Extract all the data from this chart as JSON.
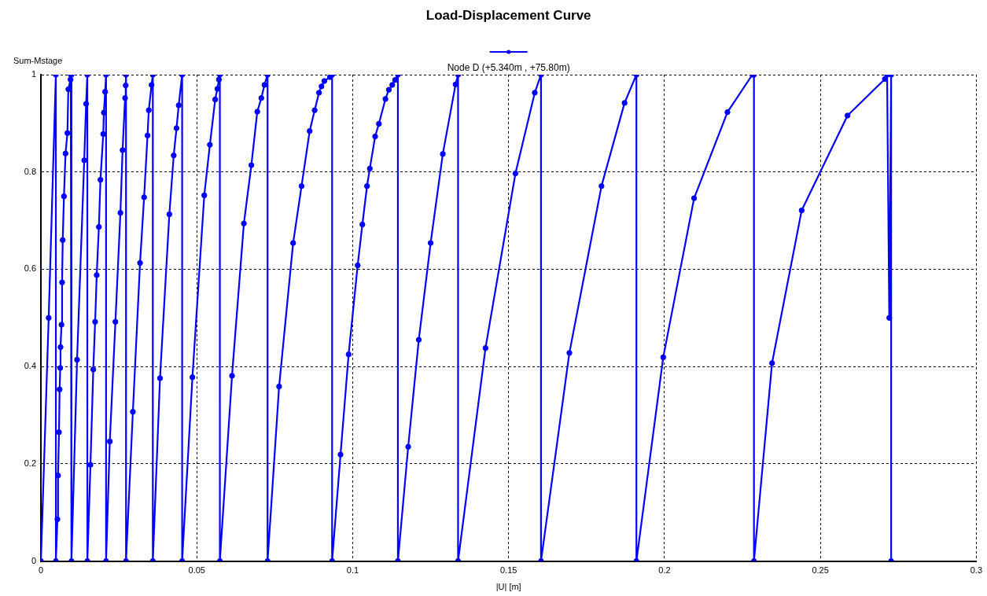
{
  "chart_data": {
    "type": "line",
    "title": "Load-Displacement Curve",
    "xlabel": "|U| [m]",
    "ylabel": "Sum-Mstage",
    "series": [
      {
        "name": "Node D (+5.340m , +75.80m)",
        "color": "#0000ff",
        "x": [
          0,
          0.0025,
          0.0048,
          0.0048,
          0.0053,
          0.0055,
          0.0058,
          0.006,
          0.0062,
          0.0063,
          0.0066,
          0.0068,
          0.007,
          0.0074,
          0.0079,
          0.0085,
          0.0088,
          0.0095,
          0.0096,
          0.0098,
          0.0098,
          0.0116,
          0.0139,
          0.0145,
          0.0149,
          0.0149,
          0.0159,
          0.0168,
          0.0174,
          0.0179,
          0.0186,
          0.0191,
          0.02,
          0.0202,
          0.0206,
          0.0209,
          0.0209,
          0.0221,
          0.0239,
          0.0255,
          0.0262,
          0.027,
          0.0272,
          0.0273,
          0.0273,
          0.0295,
          0.0318,
          0.0331,
          0.0342,
          0.0346,
          0.0355,
          0.0359,
          0.0359,
          0.0382,
          0.0412,
          0.0426,
          0.0435,
          0.0442,
          0.0453,
          0.0453,
          0.0486,
          0.0524,
          0.0542,
          0.0559,
          0.0566,
          0.0571,
          0.0574,
          0.0574,
          0.0613,
          0.0651,
          0.0675,
          0.0694,
          0.0707,
          0.0717,
          0.0727,
          0.0727,
          0.0764,
          0.0809,
          0.0836,
          0.0862,
          0.0878,
          0.0892,
          0.09,
          0.0909,
          0.0927,
          0.0934,
          0.0934,
          0.0961,
          0.0987,
          0.1016,
          0.1031,
          0.1046,
          0.1055,
          0.1072,
          0.1084,
          0.1105,
          0.1116,
          0.1127,
          0.1136,
          0.1145,
          0.1145,
          0.1178,
          0.1212,
          0.125,
          0.1289,
          0.133,
          0.1338,
          0.1338,
          0.1426,
          0.1522,
          0.1584,
          0.1604,
          0.1604,
          0.1695,
          0.1798,
          0.1872,
          0.191,
          0.191,
          0.1996,
          0.2095,
          0.2202,
          0.2282,
          0.2287,
          0.2287,
          0.2345,
          0.244,
          0.2587,
          0.2707,
          0.2714,
          0.2721,
          0.2727,
          0.2727
        ],
        "values": [
          0,
          0.5,
          1,
          0,
          0.086,
          0.176,
          0.265,
          0.353,
          0.397,
          0.44,
          0.486,
          0.573,
          0.66,
          0.75,
          0.838,
          0.88,
          0.97,
          0.99,
          1,
          1,
          0,
          0.414,
          0.824,
          0.94,
          1,
          0,
          0.198,
          0.394,
          0.492,
          0.588,
          0.687,
          0.784,
          0.878,
          0.922,
          0.965,
          1,
          0,
          0.246,
          0.492,
          0.716,
          0.845,
          0.952,
          0.978,
          1,
          0,
          0.307,
          0.613,
          0.748,
          0.875,
          0.927,
          0.979,
          1,
          0,
          0.376,
          0.713,
          0.834,
          0.89,
          0.937,
          1,
          0,
          0.378,
          0.752,
          0.856,
          0.949,
          0.971,
          0.99,
          1,
          0,
          0.381,
          0.694,
          0.814,
          0.924,
          0.952,
          0.979,
          1,
          0,
          0.359,
          0.654,
          0.771,
          0.884,
          0.927,
          0.963,
          0.976,
          0.987,
          0.995,
          1,
          0,
          0.219,
          0.425,
          0.608,
          0.692,
          0.771,
          0.807,
          0.873,
          0.899,
          0.95,
          0.969,
          0.979,
          0.989,
          1,
          0,
          0.235,
          0.455,
          0.654,
          0.837,
          0.98,
          1,
          0,
          0.438,
          0.797,
          0.963,
          1,
          0,
          0.428,
          0.771,
          0.942,
          1,
          0,
          0.419,
          0.746,
          0.923,
          1,
          1,
          0,
          0.407,
          0.721,
          0.916,
          0.991,
          1,
          0.5,
          1,
          0
        ]
      }
    ],
    "xlim": [
      0,
      0.3
    ],
    "xticks": [
      0,
      0.05,
      0.1,
      0.15,
      0.2,
      0.25,
      0.3
    ],
    "ylim": [
      0,
      1
    ],
    "yticks": [
      0,
      0.2,
      0.4,
      0.6,
      0.8,
      1
    ],
    "grid": true,
    "legend": "top",
    "marker": "circle",
    "line_style": "solid"
  }
}
